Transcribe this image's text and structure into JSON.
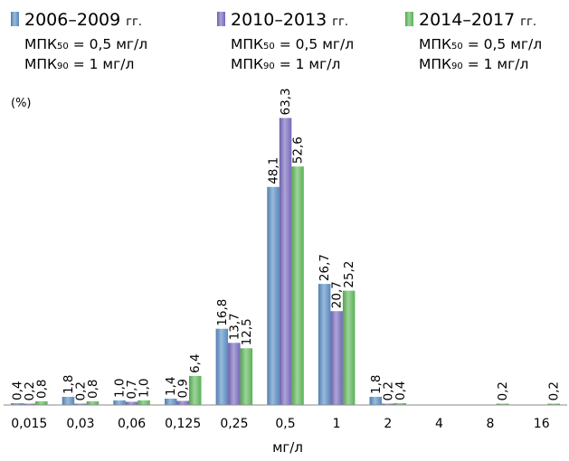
{
  "chart_data": {
    "type": "bar",
    "ylabel": "(%)",
    "xlabel": "мг/л",
    "categories": [
      "0,015",
      "0,03",
      "0,06",
      "0,125",
      "0,25",
      "0,5",
      "1",
      "2",
      "4",
      "8",
      "16"
    ],
    "ylim": [
      0,
      66
    ],
    "grid": false,
    "legend_position": "top",
    "series": [
      {
        "name": "2006–2009 гг.",
        "period": "2006–2009",
        "suffix": "гг.",
        "mic50": "МПК₅₀ = 0,5 мг/л",
        "mic90": "МПК₉₀ = 1 мг/л",
        "color": "#5b8fc7",
        "values": [
          0.4,
          1.8,
          1.0,
          1.4,
          16.8,
          48.1,
          26.7,
          1.8,
          null,
          null,
          null
        ],
        "labels": [
          "0,4",
          "1,8",
          "1,0",
          "1,4",
          "16,8",
          "48,1",
          "26,7",
          "1,8",
          null,
          null,
          null
        ]
      },
      {
        "name": "2010–2013 гг.",
        "period": "2010–2013",
        "suffix": "гг.",
        "mic50": "МПК₅₀ = 0,5 мг/л",
        "mic90": "МПК₉₀ = 1 мг/л",
        "color": "#7a6cc0",
        "values": [
          0.2,
          0.2,
          0.7,
          0.9,
          13.7,
          63.3,
          20.7,
          0.2,
          null,
          null,
          null
        ],
        "labels": [
          "0,2",
          "0,2",
          "0,7",
          "0,9",
          "13,7",
          "63,3",
          "20,7",
          "0,2",
          null,
          null,
          null
        ]
      },
      {
        "name": "2014–2017 гг.",
        "period": "2014–2017",
        "suffix": "гг.",
        "mic50": "МПК₅₀ = 0,5 мг/л",
        "mic90": "МПК₉₀ = 1 мг/л",
        "color": "#5fba5a",
        "values": [
          0.8,
          0.8,
          1.0,
          6.4,
          12.5,
          52.6,
          25.2,
          0.4,
          null,
          0.2,
          0.2
        ],
        "labels": [
          "0,8",
          "0,8",
          "1,0",
          "6,4",
          "12,5",
          "52,6",
          "25,2",
          "0,4",
          null,
          "0,2",
          "0,2"
        ]
      }
    ]
  }
}
